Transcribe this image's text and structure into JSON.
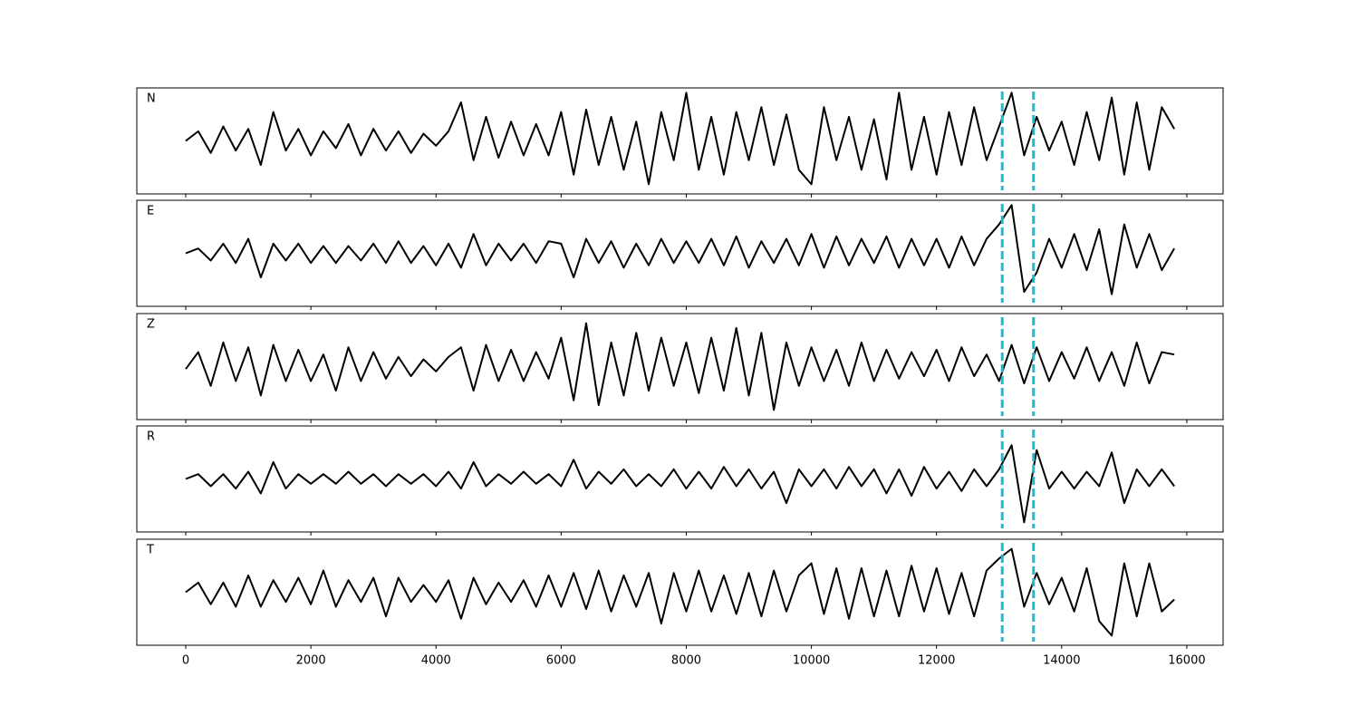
{
  "chart_data": [
    {
      "type": "line",
      "label": "N",
      "color": "#000000",
      "x": [
        0,
        200,
        400,
        600,
        800,
        1000,
        1200,
        1400,
        1600,
        1800,
        2000,
        2200,
        2400,
        2600,
        2800,
        3000,
        3200,
        3400,
        3600,
        3800,
        4000,
        4200,
        4400,
        4600,
        4800,
        5000,
        5200,
        5400,
        5600,
        5800,
        6000,
        6200,
        6400,
        6600,
        6800,
        7000,
        7200,
        7400,
        7600,
        7800,
        8000,
        8200,
        8400,
        8600,
        8800,
        9000,
        9200,
        9400,
        9600,
        9800,
        10000,
        10200,
        10400,
        10600,
        10800,
        11000,
        11200,
        11400,
        11600,
        11800,
        12000,
        12200,
        12400,
        12600,
        12800,
        13000,
        13200,
        13400,
        13600,
        13800,
        14000,
        14200,
        14400,
        14600,
        14800,
        15000,
        15200,
        15400,
        15600,
        15800
      ],
      "values": [
        0,
        0.2,
        -0.25,
        0.3,
        -0.2,
        0.25,
        -0.5,
        0.6,
        -0.2,
        0.25,
        -0.3,
        0.2,
        -0.15,
        0.35,
        -0.3,
        0.25,
        -0.2,
        0.2,
        -0.25,
        0.15,
        -0.1,
        0.2,
        0.8,
        -0.4,
        0.5,
        -0.35,
        0.4,
        -0.3,
        0.35,
        -0.3,
        0.6,
        -0.7,
        0.65,
        -0.5,
        0.5,
        -0.6,
        0.4,
        -0.9,
        0.6,
        -0.4,
        1.0,
        -0.6,
        0.5,
        -0.7,
        0.6,
        -0.4,
        0.7,
        -0.5,
        0.55,
        -0.6,
        -0.9,
        0.7,
        -0.4,
        0.5,
        -0.6,
        0.45,
        -0.8,
        1.0,
        -0.6,
        0.5,
        -0.7,
        0.6,
        -0.5,
        0.7,
        -0.4,
        0.3,
        1.0,
        -0.3,
        0.5,
        -0.2,
        0.4,
        -0.5,
        0.6,
        -0.4,
        0.9,
        -0.7,
        0.8,
        -0.6,
        0.7,
        0.25
      ],
      "xlim": [
        -782,
        16580
      ],
      "ylim": [
        -1.1,
        1.1
      ],
      "xticks": [
        0,
        2000,
        4000,
        6000,
        8000,
        10000,
        12000,
        14000,
        16000
      ],
      "vlines": [
        13050,
        13550
      ],
      "vline_color": "#17becf"
    },
    {
      "type": "line",
      "label": "E",
      "color": "#000000",
      "x": [
        0,
        200,
        400,
        600,
        800,
        1000,
        1200,
        1400,
        1600,
        1800,
        2000,
        2200,
        2400,
        2600,
        2800,
        3000,
        3200,
        3400,
        3600,
        3800,
        4000,
        4200,
        4400,
        4600,
        4800,
        5000,
        5200,
        5400,
        5600,
        5800,
        6000,
        6200,
        6400,
        6600,
        6800,
        7000,
        7200,
        7400,
        7600,
        7800,
        8000,
        8200,
        8400,
        8600,
        8800,
        9000,
        9200,
        9400,
        9600,
        9800,
        10000,
        10200,
        10400,
        10600,
        10800,
        11000,
        11200,
        11400,
        11600,
        11800,
        12000,
        12200,
        12400,
        12600,
        12800,
        13000,
        13200,
        13400,
        13600,
        13800,
        14000,
        14200,
        14400,
        14600,
        14800,
        15000,
        15200,
        15400,
        15600,
        15800
      ],
      "values": [
        0,
        0.1,
        -0.15,
        0.2,
        -0.2,
        0.3,
        -0.5,
        0.2,
        -0.15,
        0.2,
        -0.2,
        0.15,
        -0.2,
        0.15,
        -0.15,
        0.2,
        -0.2,
        0.25,
        -0.2,
        0.15,
        -0.25,
        0.2,
        -0.3,
        0.4,
        -0.25,
        0.2,
        -0.15,
        0.2,
        -0.2,
        0.25,
        0.2,
        -0.5,
        0.3,
        -0.2,
        0.25,
        -0.3,
        0.2,
        -0.25,
        0.3,
        -0.2,
        0.25,
        -0.2,
        0.3,
        -0.25,
        0.35,
        -0.3,
        0.25,
        -0.2,
        0.3,
        -0.25,
        0.4,
        -0.3,
        0.35,
        -0.25,
        0.3,
        -0.2,
        0.35,
        -0.3,
        0.3,
        -0.25,
        0.3,
        -0.3,
        0.35,
        -0.25,
        0.3,
        0.6,
        1.0,
        -0.8,
        -0.4,
        0.3,
        -0.3,
        0.4,
        -0.35,
        0.5,
        -0.85,
        0.6,
        -0.3,
        0.4,
        -0.35,
        0.1
      ],
      "xlim": [
        -782,
        16580
      ],
      "ylim": [
        -1.1,
        1.1
      ],
      "xticks": [
        0,
        2000,
        4000,
        6000,
        8000,
        10000,
        12000,
        14000,
        16000
      ],
      "vlines": [
        13050,
        13550
      ],
      "vline_color": "#17becf"
    },
    {
      "type": "line",
      "label": "Z",
      "color": "#000000",
      "x": [
        0,
        200,
        400,
        600,
        800,
        1000,
        1200,
        1400,
        1600,
        1800,
        2000,
        2200,
        2400,
        2600,
        2800,
        3000,
        3200,
        3400,
        3600,
        3800,
        4000,
        4200,
        4400,
        4600,
        4800,
        5000,
        5200,
        5400,
        5600,
        5800,
        6000,
        6200,
        6400,
        6600,
        6800,
        7000,
        7200,
        7400,
        7600,
        7800,
        8000,
        8200,
        8400,
        8600,
        8800,
        9000,
        9200,
        9400,
        9600,
        9800,
        10000,
        10200,
        10400,
        10600,
        10800,
        11000,
        11200,
        11400,
        11600,
        11800,
        12000,
        12200,
        12400,
        12600,
        12800,
        13000,
        13200,
        13400,
        13600,
        13800,
        14000,
        14200,
        14400,
        14600,
        14800,
        15000,
        15200,
        15400,
        15600,
        15800
      ],
      "values": [
        -0.05,
        0.3,
        -0.4,
        0.5,
        -0.3,
        0.4,
        -0.6,
        0.45,
        -0.3,
        0.35,
        -0.3,
        0.25,
        -0.5,
        0.4,
        -0.3,
        0.3,
        -0.25,
        0.2,
        -0.2,
        0.15,
        -0.1,
        0.2,
        0.4,
        -0.5,
        0.45,
        -0.3,
        0.35,
        -0.3,
        0.3,
        -0.25,
        0.6,
        -0.7,
        0.9,
        -0.8,
        0.5,
        -0.6,
        0.7,
        -0.5,
        0.6,
        -0.4,
        0.5,
        -0.55,
        0.6,
        -0.5,
        0.8,
        -0.6,
        0.7,
        -0.9,
        0.5,
        -0.4,
        0.4,
        -0.3,
        0.35,
        -0.4,
        0.5,
        -0.3,
        0.35,
        -0.25,
        0.3,
        -0.2,
        0.35,
        -0.3,
        0.4,
        -0.2,
        0.25,
        -0.3,
        0.45,
        -0.35,
        0.4,
        -0.3,
        0.3,
        -0.25,
        0.4,
        -0.3,
        0.3,
        -0.4,
        0.5,
        -0.35,
        0.3,
        0.25
      ],
      "xlim": [
        -782,
        16580
      ],
      "ylim": [
        -1.1,
        1.1
      ],
      "xticks": [
        0,
        2000,
        4000,
        6000,
        8000,
        10000,
        12000,
        14000,
        16000
      ],
      "vlines": [
        13050,
        13550
      ],
      "vline_color": "#17becf"
    },
    {
      "type": "line",
      "label": "R",
      "color": "#000000",
      "x": [
        0,
        200,
        400,
        600,
        800,
        1000,
        1200,
        1400,
        1600,
        1800,
        2000,
        2200,
        2400,
        2600,
        2800,
        3000,
        3200,
        3400,
        3600,
        3800,
        4000,
        4200,
        4400,
        4600,
        4800,
        5000,
        5200,
        5400,
        5600,
        5800,
        6000,
        6200,
        6400,
        6600,
        6800,
        7000,
        7200,
        7400,
        7600,
        7800,
        8000,
        8200,
        8400,
        8600,
        8800,
        9000,
        9200,
        9400,
        9600,
        9800,
        10000,
        10200,
        10400,
        10600,
        10800,
        11000,
        11200,
        11400,
        11600,
        11800,
        12000,
        12200,
        12400,
        12600,
        12800,
        13000,
        13200,
        13400,
        13600,
        13800,
        14000,
        14200,
        14400,
        14600,
        14800,
        15000,
        15200,
        15400,
        15600,
        15800
      ],
      "values": [
        0,
        0.1,
        -0.15,
        0.1,
        -0.2,
        0.15,
        -0.3,
        0.35,
        -0.2,
        0.1,
        -0.1,
        0.1,
        -0.1,
        0.15,
        -0.1,
        0.1,
        -0.15,
        0.1,
        -0.1,
        0.1,
        -0.15,
        0.15,
        -0.2,
        0.35,
        -0.15,
        0.1,
        -0.1,
        0.15,
        -0.1,
        0.1,
        -0.15,
        0.4,
        -0.2,
        0.15,
        -0.1,
        0.2,
        -0.15,
        0.1,
        -0.15,
        0.2,
        -0.2,
        0.15,
        -0.2,
        0.25,
        -0.15,
        0.2,
        -0.2,
        0.15,
        -0.5,
        0.2,
        -0.15,
        0.2,
        -0.2,
        0.25,
        -0.15,
        0.2,
        -0.3,
        0.2,
        -0.35,
        0.25,
        -0.2,
        0.15,
        -0.25,
        0.2,
        -0.15,
        0.2,
        0.7,
        -0.9,
        0.6,
        -0.2,
        0.15,
        -0.2,
        0.15,
        -0.15,
        0.55,
        -0.5,
        0.2,
        -0.15,
        0.2,
        -0.15
      ],
      "xlim": [
        -782,
        16580
      ],
      "ylim": [
        -1.1,
        1.1
      ],
      "xticks": [
        0,
        2000,
        4000,
        6000,
        8000,
        10000,
        12000,
        14000,
        16000
      ],
      "vlines": [
        13050,
        13550
      ],
      "vline_color": "#17becf"
    },
    {
      "type": "line",
      "label": "T",
      "color": "#000000",
      "x": [
        0,
        200,
        400,
        600,
        800,
        1000,
        1200,
        1400,
        1600,
        1800,
        2000,
        2200,
        2400,
        2600,
        2800,
        3000,
        3200,
        3400,
        3600,
        3800,
        4000,
        4200,
        4400,
        4600,
        4800,
        5000,
        5200,
        5400,
        5600,
        5800,
        6000,
        6200,
        6400,
        6600,
        6800,
        7000,
        7200,
        7400,
        7600,
        7800,
        8000,
        8200,
        8400,
        8600,
        8800,
        9000,
        9200,
        9400,
        9600,
        9800,
        10000,
        10200,
        10400,
        10600,
        10800,
        11000,
        11200,
        11400,
        11600,
        11800,
        12000,
        12200,
        12400,
        12600,
        12800,
        13000,
        13200,
        13400,
        13600,
        13800,
        14000,
        14200,
        14400,
        14600,
        14800,
        15000,
        15200,
        15400,
        15600,
        15800
      ],
      "values": [
        0,
        0.2,
        -0.25,
        0.2,
        -0.3,
        0.35,
        -0.3,
        0.25,
        -0.2,
        0.3,
        -0.25,
        0.45,
        -0.3,
        0.25,
        -0.2,
        0.3,
        -0.5,
        0.3,
        -0.2,
        0.15,
        -0.2,
        0.25,
        -0.55,
        0.3,
        -0.25,
        0.2,
        -0.2,
        0.25,
        -0.3,
        0.35,
        -0.3,
        0.4,
        -0.35,
        0.45,
        -0.4,
        0.35,
        -0.3,
        0.4,
        -0.65,
        0.4,
        -0.4,
        0.45,
        -0.4,
        0.35,
        -0.45,
        0.4,
        -0.5,
        0.45,
        -0.4,
        0.35,
        0.6,
        -0.45,
        0.5,
        -0.55,
        0.5,
        -0.5,
        0.45,
        -0.5,
        0.55,
        -0.4,
        0.5,
        -0.45,
        0.4,
        -0.5,
        0.45,
        0.7,
        0.9,
        -0.3,
        0.4,
        -0.25,
        0.3,
        -0.4,
        0.5,
        -0.6,
        -0.9,
        0.6,
        -0.5,
        0.6,
        -0.4,
        -0.15
      ],
      "xlim": [
        -782,
        16580
      ],
      "ylim": [
        -1.1,
        1.1
      ],
      "xticks": [
        0,
        2000,
        4000,
        6000,
        8000,
        10000,
        12000,
        14000,
        16000
      ],
      "vlines": [
        13050,
        13550
      ],
      "vline_color": "#17becf"
    }
  ]
}
